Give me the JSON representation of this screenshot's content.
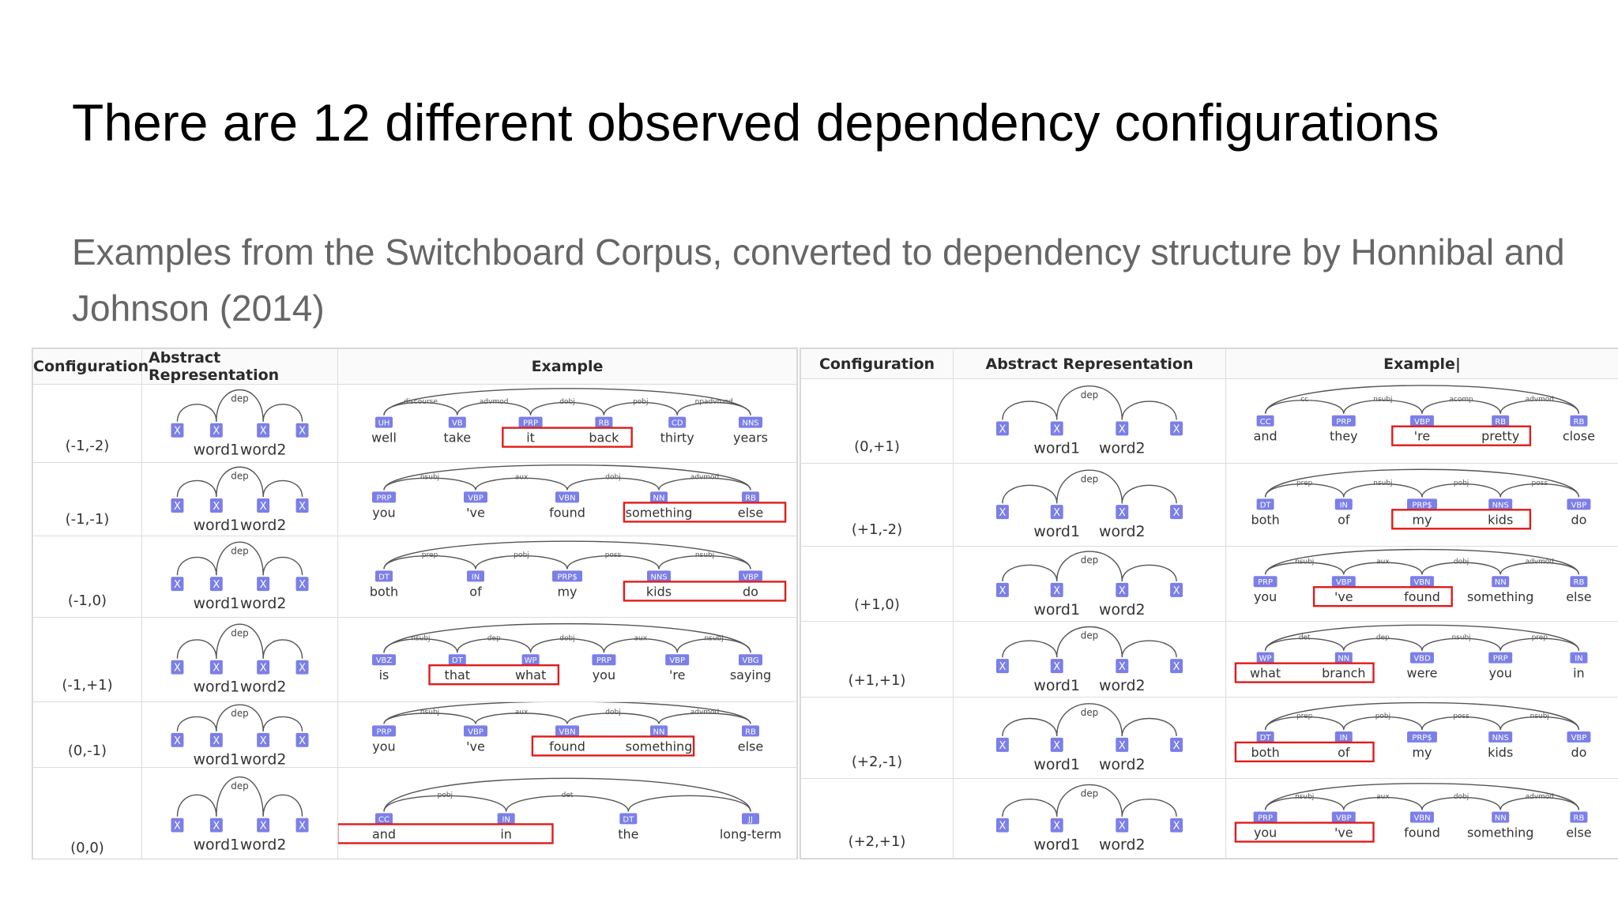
{
  "title": "There are 12 different observed dependency configurations",
  "subtitle": "Examples from the Switchboard Corpus, converted to dependency structure by Honnibal and Johnson (2014)",
  "headers": {
    "configuration": "Configuration",
    "abstract": "Abstract Representation",
    "example": "Example",
    "example_right": "Example|"
  },
  "abstract": {
    "word1": "word1",
    "word2": "word2",
    "node": "X",
    "dep": "dep"
  },
  "colors": {
    "tag": "#7b7fe8",
    "highlight": "#e01b1b",
    "arc": "#555555"
  },
  "left_table": [
    {
      "config": "(-1,-2)",
      "tokens": [
        "well",
        "take",
        "it",
        "back",
        "thirty",
        "years"
      ],
      "tags": [
        "UH",
        "VB",
        "PRP",
        "RB",
        "CD",
        "NNS"
      ],
      "labels": [
        "discourse",
        "advmod",
        "dobj",
        "pobj",
        "npadvmod"
      ],
      "highlight": [
        2,
        3
      ]
    },
    {
      "config": "(-1,-1)",
      "tokens": [
        "you",
        "'ve",
        "found",
        "something",
        "else"
      ],
      "tags": [
        "PRP",
        "VBP",
        "VBN",
        "NN",
        "RB"
      ],
      "labels": [
        "nsubj",
        "aux",
        "dobj",
        "advmod"
      ],
      "highlight": [
        3,
        4
      ]
    },
    {
      "config": "(-1,0)",
      "tokens": [
        "both",
        "of",
        "my",
        "kids",
        "do"
      ],
      "tags": [
        "DT",
        "IN",
        "PRP$",
        "NNS",
        "VBP"
      ],
      "labels": [
        "prep",
        "pobj",
        "poss",
        "nsubj"
      ],
      "highlight": [
        3,
        4
      ]
    },
    {
      "config": "(-1,+1)",
      "tokens": [
        "is",
        "that",
        "what",
        "you",
        "'re",
        "saying"
      ],
      "tags": [
        "VBZ",
        "DT",
        "WP",
        "PRP",
        "VBP",
        "VBG"
      ],
      "labels": [
        "nsubj",
        "dep",
        "dobj",
        "aux",
        "nsubj"
      ],
      "highlight": [
        1,
        2
      ]
    },
    {
      "config": "(0,-1)",
      "tokens": [
        "you",
        "'ve",
        "found",
        "something",
        "else"
      ],
      "tags": [
        "PRP",
        "VBP",
        "VBN",
        "NN",
        "RB"
      ],
      "labels": [
        "nsubj",
        "aux",
        "dobj",
        "advmod"
      ],
      "highlight": [
        2,
        3
      ]
    },
    {
      "config": "(0,0)",
      "tokens": [
        "and",
        "in",
        "the",
        "long-term"
      ],
      "tags": [
        "CC",
        "IN",
        "DT",
        "JJ"
      ],
      "labels": [
        "pobj",
        "det"
      ],
      "highlight": [
        0,
        1
      ]
    }
  ],
  "right_table": [
    {
      "config": "(0,+1)",
      "tokens": [
        "and",
        "they",
        "'re",
        "pretty",
        "close"
      ],
      "tags": [
        "CC",
        "PRP",
        "VBP",
        "RB",
        "RB"
      ],
      "labels": [
        "cc",
        "nsubj",
        "acomp",
        "advmod"
      ],
      "highlight": [
        2,
        3
      ]
    },
    {
      "config": "(+1,-2)",
      "tokens": [
        "both",
        "of",
        "my",
        "kids",
        "do"
      ],
      "tags": [
        "DT",
        "IN",
        "PRP$",
        "NNS",
        "VBP"
      ],
      "labels": [
        "prep",
        "nsubj",
        "pobj",
        "poss"
      ],
      "highlight": [
        2,
        3
      ]
    },
    {
      "config": "(+1,0)",
      "tokens": [
        "you",
        "'ve",
        "found",
        "something",
        "else"
      ],
      "tags": [
        "PRP",
        "VBP",
        "VBN",
        "NN",
        "RB"
      ],
      "labels": [
        "nsubj",
        "aux",
        "dobj",
        "advmod"
      ],
      "highlight": [
        1,
        2
      ]
    },
    {
      "config": "(+1,+1)",
      "tokens": [
        "what",
        "branch",
        "were",
        "you",
        "in"
      ],
      "tags": [
        "WP",
        "NN",
        "VBD",
        "PRP",
        "IN"
      ],
      "labels": [
        "det",
        "dep",
        "nsubj",
        "prep"
      ],
      "highlight": [
        0,
        1
      ]
    },
    {
      "config": "(+2,-1)",
      "tokens": [
        "both",
        "of",
        "my",
        "kids",
        "do"
      ],
      "tags": [
        "DT",
        "IN",
        "PRP$",
        "NNS",
        "VBP"
      ],
      "labels": [
        "prep",
        "pobj",
        "poss",
        "nsubj"
      ],
      "highlight": [
        0,
        1
      ]
    },
    {
      "config": "(+2,+1)",
      "tokens": [
        "you",
        "'ve",
        "found",
        "something",
        "else"
      ],
      "tags": [
        "PRP",
        "VBP",
        "VBN",
        "NN",
        "RB"
      ],
      "labels": [
        "nsubj",
        "aux",
        "dobj",
        "advmod"
      ],
      "highlight": [
        0,
        1
      ]
    }
  ]
}
